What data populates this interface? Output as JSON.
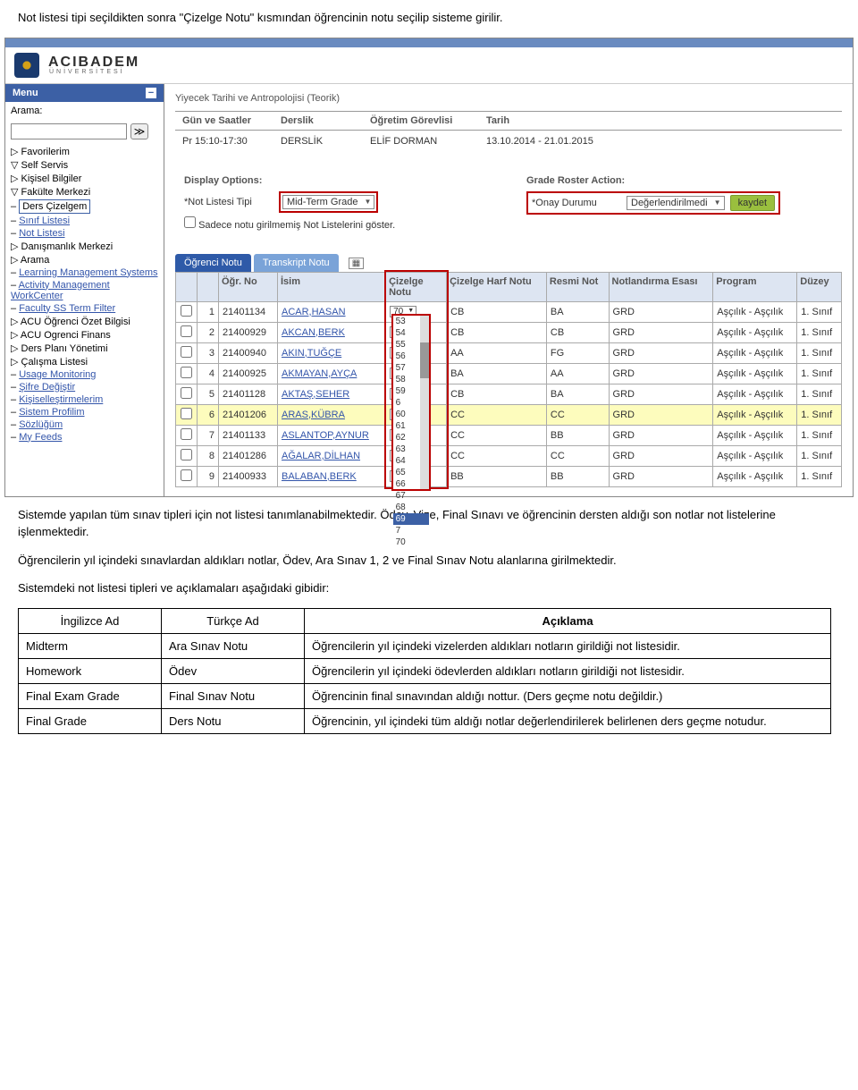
{
  "intro_text": "Not listesi tipi seçildikten sonra \"Çizelge Notu\" kısmından öğrencinin notu seçilip sisteme girilir.",
  "para1": "Sistemde yapılan tüm sınav tipleri için not listesi tanımlanabilmektedir. Ödev, Vize, Final Sınavı ve öğrencinin dersten aldığı son notlar not listelerine işlenmektedir.",
  "para2": "Öğrencilerin yıl içindeki sınavlardan aldıkları notlar, Ödev, Ara Sınav 1, 2 ve Final Sınav Notu alanlarına girilmektedir.",
  "para3": "Sistemdeki not listesi tipleri ve açıklamaları aşağıdaki gibidir:",
  "logo": {
    "name": "ACIBADEM",
    "sub": "ÜNİVERSİTESİ"
  },
  "menu": {
    "title": "Menu",
    "search_label": "Arama:",
    "items": [
      {
        "label": "Favorilerim",
        "lvl": 1,
        "pre": "▷"
      },
      {
        "label": "Self Servis",
        "lvl": 1,
        "pre": "▽"
      },
      {
        "label": "Kişisel Bilgiler",
        "lvl": 2,
        "pre": "▷"
      },
      {
        "label": "Fakülte Merkezi",
        "lvl": 2,
        "pre": "▽"
      },
      {
        "label": "Ders Çizelgem",
        "lvl": 3,
        "selected": true
      },
      {
        "label": "Sınıf Listesi",
        "lvl": 3,
        "link": true
      },
      {
        "label": "Not Listesi",
        "lvl": 3,
        "link": true
      },
      {
        "label": "Danışmanlık Merkezi",
        "lvl": 2,
        "pre": "▷"
      },
      {
        "label": "Arama",
        "lvl": 2,
        "pre": "▷"
      },
      {
        "label": "Learning Management Systems",
        "lvl": 2,
        "link": true
      },
      {
        "label": "Activity Management WorkCenter",
        "lvl": 2,
        "link": true
      },
      {
        "label": "Faculty SS Term Filter",
        "lvl": 2,
        "link": true
      },
      {
        "label": "ACU Öğrenci Özet Bilgisi",
        "lvl": 1,
        "pre": "▷"
      },
      {
        "label": "ACU Ogrenci Finans",
        "lvl": 1,
        "pre": "▷"
      },
      {
        "label": "Ders Planı Yönetimi",
        "lvl": 1,
        "pre": "▷"
      },
      {
        "label": "Çalışma Listesi",
        "lvl": 1,
        "pre": "▷"
      },
      {
        "label": "Usage Monitoring",
        "lvl": 1,
        "link": true
      },
      {
        "label": "Şifre Değiştir",
        "lvl": 1,
        "link": true
      },
      {
        "label": "Kişiselleştirmelerim",
        "lvl": 1,
        "link": true
      },
      {
        "label": "Sistem Profilim",
        "lvl": 1,
        "link": true
      },
      {
        "label": "Sözlüğüm",
        "lvl": 1,
        "link": true
      },
      {
        "label": "My Feeds",
        "lvl": 1,
        "link": true
      }
    ]
  },
  "course": {
    "title": "Yiyecek Tarihi ve Antropolojisi (Teorik)",
    "headers": {
      "gun": "Gün ve Saatler",
      "derslik": "Derslik",
      "ogretim": "Öğretim Görevlisi",
      "tarih": "Tarih"
    },
    "values": {
      "gun": "Pr 15:10-17:30",
      "derslik": "DERSLİK",
      "ogretim": "ELİF DORMAN",
      "tarih": "13.10.2014 - 21.01.2015"
    }
  },
  "panel_left": {
    "title": "Display Options:",
    "label": "*Not Listesi Tipi",
    "value": "Mid-Term Grade",
    "check_label": "Sadece notu girilmemiş Not Listelerini göster."
  },
  "panel_right": {
    "title": "Grade Roster Action:",
    "label": "*Onay Durumu",
    "value": "Değerlendirilmedi",
    "save": "kaydet"
  },
  "tabs": {
    "t1": "Öğrenci Notu",
    "t2": "Transkript Notu"
  },
  "grid_headers": {
    "ogrno": "Öğr. No",
    "isim": "İsim",
    "cizelge": "Çizelge Notu",
    "harf": "Çizelge Harf Notu",
    "resmi": "Resmi Not",
    "esas": "Notlandırma Esası",
    "program": "Program",
    "duzey": "Düzey"
  },
  "rows": [
    {
      "n": 1,
      "no": "21401134",
      "isim": "ACAR,HASAN",
      "ciz": "70",
      "harf": "CB",
      "resmi": "BA",
      "esas": "GRD",
      "prog": "Aşçılık - Aşçılık",
      "duz": "1. Sınıf"
    },
    {
      "n": 2,
      "no": "21400929",
      "isim": "AKCAN,BERK",
      "ciz": "",
      "harf": "CB",
      "resmi": "CB",
      "esas": "GRD",
      "prog": "Aşçılık - Aşçılık",
      "duz": "1. Sınıf"
    },
    {
      "n": 3,
      "no": "21400940",
      "isim": "AKIN,TUĞÇE",
      "ciz": "",
      "harf": "AA",
      "resmi": "FG",
      "esas": "GRD",
      "prog": "Aşçılık - Aşçılık",
      "duz": "1. Sınıf"
    },
    {
      "n": 4,
      "no": "21400925",
      "isim": "AKMAYAN,AYÇA",
      "ciz": "",
      "harf": "BA",
      "resmi": "AA",
      "esas": "GRD",
      "prog": "Aşçılık - Aşçılık",
      "duz": "1. Sınıf"
    },
    {
      "n": 5,
      "no": "21401128",
      "isim": "AKTAŞ,SEHER",
      "ciz": "",
      "harf": "CB",
      "resmi": "BA",
      "esas": "GRD",
      "prog": "Aşçılık - Aşçılık",
      "duz": "1. Sınıf"
    },
    {
      "n": 6,
      "no": "21401206",
      "isim": "ARAS,KÜBRA",
      "ciz": "",
      "harf": "CC",
      "resmi": "CC",
      "esas": "GRD",
      "prog": "Aşçılık - Aşçılık",
      "duz": "1. Sınıf",
      "hl": true
    },
    {
      "n": 7,
      "no": "21401133",
      "isim": "ASLANTOP,AYNUR",
      "ciz": "",
      "harf": "CC",
      "resmi": "BB",
      "esas": "GRD",
      "prog": "Aşçılık - Aşçılık",
      "duz": "1. Sınıf"
    },
    {
      "n": 8,
      "no": "21401286",
      "isim": "AĞALAR,DİLHAN",
      "ciz": "",
      "harf": "CC",
      "resmi": "CC",
      "esas": "GRD",
      "prog": "Aşçılık - Aşçılık",
      "duz": "1. Sınıf"
    },
    {
      "n": 9,
      "no": "21400933",
      "isim": "BALABAN,BERK",
      "ciz": "",
      "harf": "BB",
      "resmi": "BB",
      "esas": "GRD",
      "prog": "Aşçılık - Aşçılık",
      "duz": "1. Sınıf"
    }
  ],
  "dropdown_values": [
    "53",
    "54",
    "55",
    "56",
    "57",
    "58",
    "59",
    "6",
    "60",
    "61",
    "62",
    "63",
    "64",
    "65",
    "66",
    "67",
    "68",
    "69",
    "7",
    "70"
  ],
  "dropdown_selected": "69",
  "explain": {
    "h1": "İngilizce Ad",
    "h2": "Türkçe Ad",
    "h3": "Açıklama",
    "rows": [
      {
        "a": "Midterm",
        "b": "Ara Sınav Notu",
        "c": "Öğrencilerin yıl içindeki vizelerden aldıkları notların girildiği not listesidir."
      },
      {
        "a": "Homework",
        "b": "Ödev",
        "c": "Öğrencilerin yıl içindeki ödevlerden aldıkları notların girildiği not listesidir."
      },
      {
        "a": "Final Exam Grade",
        "b": "Final Sınav Notu",
        "c": "Öğrencinin final sınavından aldığı nottur. (Ders geçme notu değildir.)"
      },
      {
        "a": "Final Grade",
        "b": "Ders Notu",
        "c": "Öğrencinin, yıl içindeki tüm aldığı notlar değerlendirilerek belirlenen ders geçme notudur."
      }
    ]
  }
}
